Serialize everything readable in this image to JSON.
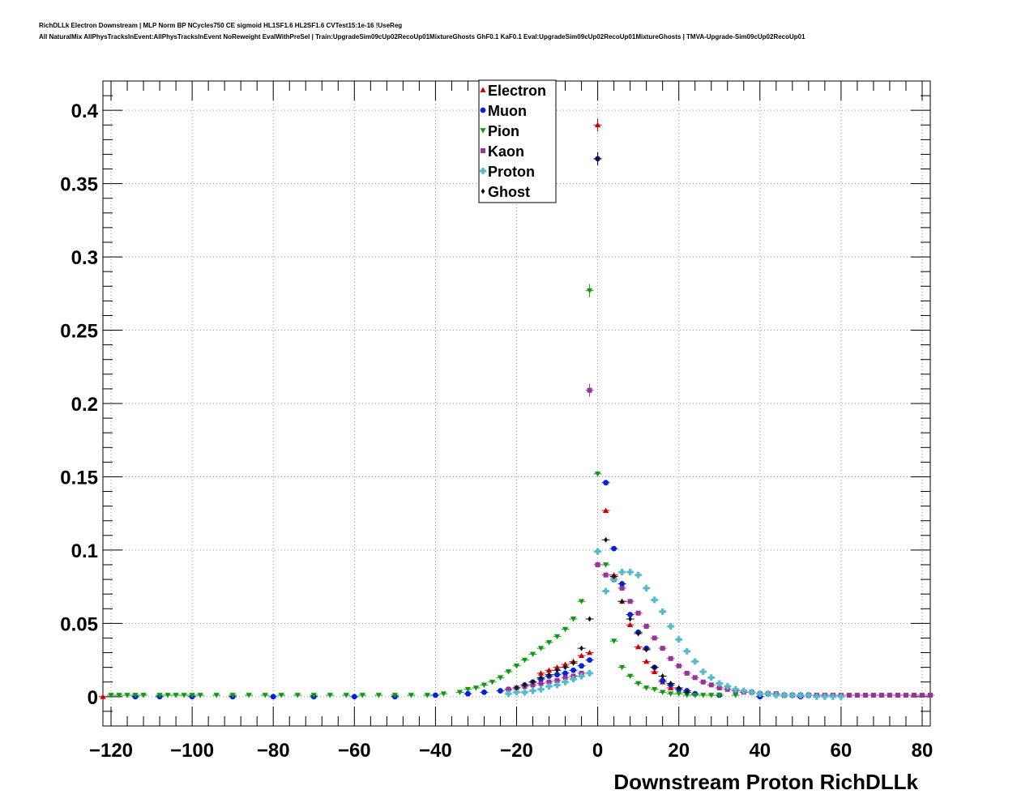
{
  "header": {
    "title_line1": "RichDLLk Electron Downstream | MLP Norm BP NCycles750 CE sigmoid HL1SF1.6 HL2SF1.6 CVTest15:1e-16 !UseReg",
    "title_line2": "All NaturalMix AllPhysTracksInEvent:AllPhysTracksInEvent NoReweight EvalWithPreSel | Train:UpgradeSim09cUp02RecoUp01MixtureGhosts GhF0.1 KaF0.1 Eval:UpgradeSim09cUp02RecoUp01MixtureGhosts | TMVA-Upgrade-Sim09cUp02RecoUp01"
  },
  "chart_data": {
    "type": "scatter",
    "title": "",
    "xlabel": "Downstream Proton RichDLLk",
    "ylabel": "",
    "xlim": [
      -122,
      82
    ],
    "ylim": [
      -0.02,
      0.42
    ],
    "x_ticks": [
      -120,
      -100,
      -80,
      -60,
      -40,
      -20,
      0,
      20,
      40,
      60,
      80
    ],
    "x_tick_labels": [
      "−120",
      "−100",
      "−80",
      "−60",
      "−40",
      "−20",
      "0",
      "20",
      "40",
      "60",
      "80"
    ],
    "y_ticks": [
      0,
      0.05,
      0.1,
      0.15,
      0.2,
      0.25,
      0.3,
      0.35,
      0.4
    ],
    "y_tick_labels": [
      "0",
      "0.05",
      "0.1",
      "0.15",
      "0.2",
      "0.25",
      "0.3",
      "0.35",
      "0.4"
    ],
    "grid": true,
    "legend_position": "top-center",
    "series": [
      {
        "name": "Electron",
        "color": "#cc0000",
        "marker": "triangle-up",
        "x": [
          -122,
          -14,
          -12,
          -10,
          -8,
          -6,
          -4,
          -2,
          0,
          2,
          4,
          6,
          8,
          10,
          12,
          14,
          16,
          18
        ],
        "y": [
          0.0,
          0.016,
          0.018,
          0.02,
          0.022,
          0.024,
          0.028,
          0.03,
          0.39,
          0.127,
          0.083,
          0.065,
          0.049,
          0.034,
          0.024,
          0.017,
          0.01,
          0.006
        ]
      },
      {
        "name": "Muon",
        "color": "#0022dd",
        "marker": "circle",
        "x": [
          -114,
          -108,
          -100,
          -90,
          -80,
          -70,
          -60,
          -50,
          -40,
          -32,
          -28,
          -24,
          -22,
          -20,
          -18,
          -16,
          -14,
          -12,
          -10,
          -8,
          -6,
          -4,
          -2,
          0,
          2,
          4,
          6,
          8,
          10,
          12,
          14,
          16,
          18,
          20,
          22,
          24,
          30,
          40,
          50
        ],
        "y": [
          0.0,
          0.0,
          0.0,
          0.0,
          0.0,
          0.0,
          0.0,
          0.0,
          0.001,
          0.002,
          0.003,
          0.004,
          0.005,
          0.006,
          0.008,
          0.01,
          0.012,
          0.014,
          0.015,
          0.016,
          0.018,
          0.021,
          0.025,
          0.367,
          0.146,
          0.101,
          0.077,
          0.056,
          0.044,
          0.033,
          0.02,
          0.011,
          0.008,
          0.005,
          0.004,
          0.002,
          0.001,
          0.0,
          0.0
        ]
      },
      {
        "name": "Pion",
        "color": "#119911",
        "marker": "triangle-down",
        "x": [
          -120,
          -118,
          -116,
          -114,
          -112,
          -108,
          -106,
          -104,
          -102,
          -100,
          -98,
          -94,
          -90,
          -86,
          -82,
          -78,
          -74,
          -70,
          -66,
          -62,
          -58,
          -54,
          -50,
          -46,
          -42,
          -38,
          -34,
          -32,
          -30,
          -28,
          -26,
          -24,
          -22,
          -20,
          -18,
          -16,
          -14,
          -12,
          -10,
          -8,
          -6,
          -4,
          -2,
          0,
          2,
          4,
          6,
          8,
          10,
          12,
          14,
          16,
          18,
          20,
          22,
          24,
          26,
          28,
          30,
          34
        ],
        "y": [
          0.001,
          0.001,
          0.001,
          0.001,
          0.001,
          0.001,
          0.001,
          0.001,
          0.001,
          0.001,
          0.001,
          0.001,
          0.001,
          0.001,
          0.001,
          0.001,
          0.001,
          0.001,
          0.001,
          0.001,
          0.001,
          0.001,
          0.001,
          0.001,
          0.001,
          0.002,
          0.003,
          0.005,
          0.006,
          0.008,
          0.01,
          0.013,
          0.017,
          0.021,
          0.025,
          0.029,
          0.033,
          0.037,
          0.041,
          0.046,
          0.053,
          0.065,
          0.277,
          0.152,
          0.09,
          0.038,
          0.02,
          0.014,
          0.009,
          0.006,
          0.005,
          0.003,
          0.002,
          0.002,
          0.001,
          0.001,
          0.001,
          0.001,
          0.001,
          0.001
        ]
      },
      {
        "name": "Kaon",
        "color": "#993399",
        "marker": "square",
        "x": [
          -22,
          -20,
          -18,
          -16,
          -14,
          -12,
          -10,
          -8,
          -6,
          -4,
          -2,
          0,
          2,
          4,
          6,
          8,
          10,
          12,
          14,
          16,
          18,
          20,
          22,
          24,
          26,
          28,
          30,
          32,
          34,
          36,
          38,
          40,
          42,
          44,
          46,
          48,
          50,
          52,
          54,
          56,
          58,
          60,
          62,
          64,
          66,
          68,
          70,
          72,
          74,
          76,
          78,
          80,
          82
        ],
        "y": [
          0.005,
          0.006,
          0.007,
          0.008,
          0.009,
          0.01,
          0.011,
          0.013,
          0.014,
          0.016,
          0.209,
          0.09,
          0.083,
          0.08,
          0.074,
          0.065,
          0.057,
          0.048,
          0.04,
          0.033,
          0.026,
          0.021,
          0.016,
          0.013,
          0.01,
          0.008,
          0.006,
          0.005,
          0.004,
          0.003,
          0.003,
          0.002,
          0.002,
          0.002,
          0.001,
          0.001,
          0.001,
          0.001,
          0.001,
          0.001,
          0.001,
          0.001,
          0.001,
          0.001,
          0.001,
          0.001,
          0.001,
          0.001,
          0.001,
          0.001,
          0.001,
          0.001,
          0.001
        ]
      },
      {
        "name": "Proton",
        "color": "#55bbcc",
        "marker": "cross",
        "x": [
          -22,
          -20,
          -18,
          -16,
          -14,
          -12,
          -10,
          -8,
          -6,
          -4,
          -2,
          0,
          2,
          4,
          6,
          8,
          10,
          12,
          14,
          16,
          18,
          20,
          22,
          24,
          26,
          28,
          30,
          32,
          34,
          36,
          38,
          40,
          42,
          44,
          46,
          48,
          50,
          52,
          54,
          56,
          58,
          60
        ],
        "y": [
          0.002,
          0.003,
          0.003,
          0.004,
          0.005,
          0.007,
          0.008,
          0.01,
          0.012,
          0.014,
          0.016,
          0.099,
          0.072,
          0.08,
          0.085,
          0.085,
          0.083,
          0.074,
          0.066,
          0.058,
          0.048,
          0.039,
          0.031,
          0.024,
          0.017,
          0.013,
          0.009,
          0.007,
          0.005,
          0.004,
          0.003,
          0.002,
          0.002,
          0.001,
          0.001,
          0.001,
          0.001,
          0.001,
          0.0,
          0.0,
          0.0,
          0.0
        ]
      },
      {
        "name": "Ghost",
        "color": "#111111",
        "marker": "diamond",
        "x": [
          -20,
          -18,
          -16,
          -14,
          -12,
          -10,
          -8,
          -6,
          -4,
          -2,
          0,
          2,
          4,
          6,
          8,
          10,
          12,
          14,
          16,
          18,
          20,
          22
        ],
        "y": [
          0.006,
          0.008,
          0.01,
          0.013,
          0.015,
          0.018,
          0.02,
          0.023,
          0.033,
          0.053,
          0.367,
          0.107,
          0.082,
          0.065,
          0.053,
          0.043,
          0.032,
          0.02,
          0.014,
          0.009,
          0.006,
          0.003
        ]
      }
    ]
  }
}
